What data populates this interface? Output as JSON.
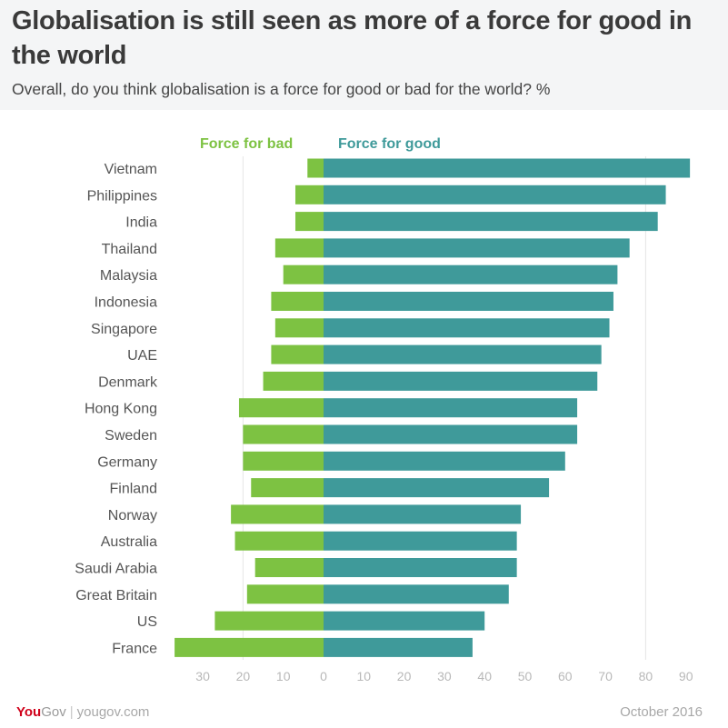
{
  "header": {
    "title": "Globalisation is still seen as more of a force for good in the world",
    "subtitle": "Overall, do you think globalisation is a force for good or bad for the world? %"
  },
  "footer": {
    "brand_you": "You",
    "brand_gov": "Gov",
    "separator": "|",
    "url": "yougov.com",
    "date": "October 2016"
  },
  "colors": {
    "bad": "#7dc242",
    "good": "#3f9a9a"
  },
  "chart_data": {
    "type": "bar",
    "orientation": "horizontal-diverging",
    "title": "Globalisation is still seen as more of a force for good in the world",
    "subtitle": "Overall, do you think globalisation is a force for good or bad for the world? %",
    "categories": [
      "Vietnam",
      "Philippines",
      "India",
      "Thailand",
      "Malaysia",
      "Indonesia",
      "Singapore",
      "UAE",
      "Denmark",
      "Hong Kong",
      "Sweden",
      "Germany",
      "Finland",
      "Norway",
      "Australia",
      "Saudi Arabia",
      "Great Britain",
      "US",
      "France"
    ],
    "series": [
      {
        "name": "Force for bad",
        "color": "#7dc242",
        "direction": "left",
        "values": [
          4,
          7,
          7,
          12,
          10,
          13,
          12,
          13,
          15,
          21,
          20,
          20,
          18,
          23,
          22,
          17,
          19,
          27,
          37
        ]
      },
      {
        "name": "Force for good",
        "color": "#3f9a9a",
        "direction": "right",
        "values": [
          91,
          85,
          83,
          76,
          73,
          72,
          71,
          69,
          68,
          63,
          63,
          60,
          56,
          49,
          48,
          48,
          46,
          40,
          37
        ]
      }
    ],
    "x_ticks": [
      {
        "value": -30,
        "label": "30"
      },
      {
        "value": -20,
        "label": "20"
      },
      {
        "value": -10,
        "label": "10"
      },
      {
        "value": 0,
        "label": "0"
      },
      {
        "value": 10,
        "label": "10"
      },
      {
        "value": 20,
        "label": "20"
      },
      {
        "value": 30,
        "label": "30"
      },
      {
        "value": 40,
        "label": "40"
      },
      {
        "value": 50,
        "label": "50"
      },
      {
        "value": 60,
        "label": "60"
      },
      {
        "value": 70,
        "label": "70"
      },
      {
        "value": 80,
        "label": "80"
      },
      {
        "value": 90,
        "label": "90"
      }
    ],
    "xlim": [
      -40,
      92
    ],
    "gridlines_at": [
      -20,
      80
    ],
    "legend": [
      "Force for bad",
      "Force for good"
    ],
    "legend_placement": "top",
    "xlabel": "",
    "ylabel": ""
  }
}
